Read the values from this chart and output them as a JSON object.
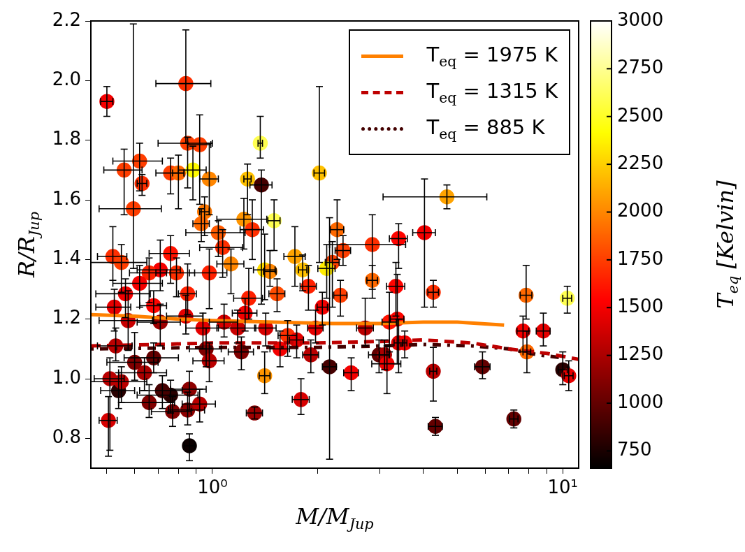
{
  "chart_data": {
    "type": "scatter",
    "xlabel": "M/M$_{Jup}$",
    "ylabel": "R/R$_{Jup}$",
    "clabel": "T$_{eq}$ [Kelvin]",
    "log": "x",
    "legend": "top right",
    "marker": "circle",
    "xlim": [
      0.45,
      11.1
    ],
    "xticks": [
      {
        "value": 0.5,
        "label": null
      },
      {
        "value": 0.6,
        "label": null
      },
      {
        "value": 0.7,
        "label": null
      },
      {
        "value": 0.8,
        "label": null
      },
      {
        "value": 0.9,
        "label": null
      },
      {
        "value": 1,
        "label": "10⁰"
      },
      {
        "value": 2,
        "label": null
      },
      {
        "value": 3,
        "label": null
      },
      {
        "value": 4,
        "label": null
      },
      {
        "value": 5,
        "label": null
      },
      {
        "value": 6,
        "label": null
      },
      {
        "value": 7,
        "label": null
      },
      {
        "value": 8,
        "label": null
      },
      {
        "value": 9,
        "label": null
      },
      {
        "value": 10,
        "label": "10¹"
      }
    ],
    "ylim": [
      0.7,
      2.2
    ],
    "yticks": [
      0.8,
      {
        "value": 1,
        "label": "1.0"
      },
      1.2,
      1.4,
      1.6,
      1.8,
      {
        "value": 2,
        "label": "2.0"
      },
      2.2
    ],
    "clim": [
      660,
      3000
    ],
    "cticks": [
      750,
      1000,
      1250,
      1500,
      1750,
      2000,
      2250,
      2500,
      2750,
      3000
    ],
    "series": [
      {
        "x": [
          0.5,
          0.84,
          0.56,
          0.62,
          0.63,
          0.595,
          0.76,
          0.8,
          0.88,
          0.85,
          0.92,
          0.98,
          1.26,
          1.38,
          1.37,
          1.5,
          2.02,
          1.23,
          1.3,
          0.95,
          0.93,
          1.04,
          4.67,
          4.03,
          2.27,
          2.86,
          3.4,
          2.36,
          2.2,
          1.72,
          1.81,
          2.12,
          1.41,
          1.46,
          1.13,
          1.07,
          0.76,
          0.52,
          0.55,
          0.71,
          0.66,
          0.79,
          0.62,
          0.98,
          3.34,
          4.27,
          2.86,
          2.32,
          1.88,
          1.53,
          1.27,
          2.06,
          7.86,
          10.3,
          0.565,
          0.85,
          0.68,
          0.525,
          0.575,
          0.71,
          0.94,
          1.18,
          1.42,
          1.64,
          1.97,
          2.73,
          3.2,
          3.37,
          3.4,
          2.99,
          3.1,
          3.54,
          3.15,
          4.27,
          5.9,
          7.7,
          8.8,
          7.9,
          10.0,
          10.4,
          4.33,
          7.25,
          2.49,
          2.16,
          1.79,
          1.32,
          1.41,
          0.86,
          0.505,
          0.54,
          0.55,
          0.64,
          0.66,
          0.76,
          0.72,
          0.85,
          0.92,
          0.77,
          0.86,
          0.6,
          0.68,
          0.84,
          1.08,
          1.24,
          0.96,
          0.98,
          1.21,
          1.56,
          1.91,
          1.74,
          0.53,
          0.51
        ],
        "values": [
          1.93,
          1.99,
          1.7,
          1.73,
          1.655,
          1.57,
          1.69,
          1.69,
          1.7,
          1.79,
          1.785,
          1.67,
          1.67,
          1.65,
          1.79,
          1.53,
          1.69,
          1.535,
          1.5,
          1.56,
          1.52,
          1.49,
          1.61,
          1.49,
          1.5,
          1.45,
          1.47,
          1.43,
          1.39,
          1.41,
          1.365,
          1.37,
          1.365,
          1.36,
          1.385,
          1.44,
          1.42,
          1.41,
          1.39,
          1.365,
          1.355,
          1.355,
          1.32,
          1.355,
          1.31,
          1.29,
          1.33,
          1.28,
          1.31,
          1.285,
          1.27,
          1.24,
          1.28,
          1.27,
          1.285,
          1.285,
          1.245,
          1.24,
          1.195,
          1.19,
          1.17,
          1.17,
          1.17,
          1.145,
          1.17,
          1.17,
          1.19,
          1.2,
          1.12,
          1.08,
          1.08,
          1.12,
          1.05,
          1.025,
          1.04,
          1.16,
          1.16,
          1.09,
          1.03,
          1.01,
          0.84,
          0.865,
          1.02,
          1.04,
          0.93,
          0.885,
          1.01,
          0.775,
          0.86,
          0.96,
          0.99,
          1.02,
          0.92,
          0.945,
          0.96,
          0.895,
          0.915,
          0.89,
          0.965,
          1.055,
          1.07,
          1.21,
          1.19,
          1.22,
          1.1,
          1.06,
          1.09,
          1.1,
          1.08,
          1.13,
          1.11,
          1.0
        ],
        "errors": [
          0.05,
          [
            1.79,
            2.17
          ],
          [
            1.55,
            1.77
          ],
          [
            1.63,
            1.79
          ],
          [
            1.615,
            1.685
          ],
          [
            1.37,
            2.19
          ],
          [
            1.62,
            1.74
          ],
          [
            1.57,
            1.75
          ],
          [
            1.6,
            1.78
          ],
          [
            1.64,
            1.81
          ],
          [
            1.585,
            1.885
          ],
          0.12,
          [
            1.55,
            1.72
          ],
          [
            1.25,
            1.7
          ],
          [
            1.74,
            1.88
          ],
          [
            1.43,
            1.6
          ],
          [
            1.39,
            1.98
          ],
          [
            1.435,
            1.605
          ],
          0.1,
          [
            1.48,
            1.61
          ],
          [
            1.46,
            1.57
          ],
          [
            1.41,
            1.53
          ],
          0.04,
          [
            1.24,
            1.67
          ],
          0.1,
          [
            1.3,
            1.55
          ],
          [
            1.37,
            1.52
          ],
          0.05,
          [
            1.24,
            1.46
          ],
          0.1,
          [
            1.295,
            1.415
          ],
          [
            1.27,
            1.45
          ],
          [
            1.265,
            1.485
          ],
          [
            1.31,
            1.43
          ],
          [
            1.285,
            1.435
          ],
          [
            1.34,
            1.5
          ],
          [
            1.32,
            1.48
          ],
          [
            1.33,
            1.51
          ],
          [
            1.29,
            1.45
          ],
          [
            1.295,
            1.465
          ],
          [
            1.255,
            1.405
          ],
          [
            1.275,
            1.405
          ],
          [
            1.24,
            1.38
          ],
          [
            1.235,
            1.435
          ],
          [
            1.21,
            1.39
          ],
          [
            1.24,
            1.33
          ],
          [
            1.27,
            1.38
          ],
          [
            1.21,
            1.33
          ],
          [
            1.23,
            1.38
          ],
          [
            1.225,
            1.335
          ],
          [
            1.2,
            1.37
          ],
          [
            1.18,
            1.29
          ],
          [
            1.2,
            1.38
          ],
          [
            1.22,
            1.31
          ],
          [
            1.205,
            1.335
          ],
          [
            1.215,
            1.385
          ],
          [
            1.185,
            1.295
          ],
          [
            1.16,
            1.3
          ],
          0.1,
          [
            1.11,
            1.25
          ],
          [
            1.1,
            1.22
          ],
          [
            1.12,
            1.23
          ],
          [
            1.11,
            1.22
          ],
          [
            1.075,
            1.195
          ],
          [
            1.12,
            1.23
          ],
          [
            1.11,
            1.27
          ],
          0.1,
          0.15,
          [
            1.02,
            1.2
          ],
          [
            1.02,
            1.13
          ],
          0.05,
          [
            1.07,
            1.16
          ],
          [
            0.95,
            1.11
          ],
          [
            0.925,
            1.105
          ],
          [
            1.0,
            1.09
          ],
          [
            1.09,
            1.21
          ],
          [
            1.11,
            1.22
          ],
          0.07,
          [
            0.98,
            1.09
          ],
          0.05,
          0.03,
          0.03,
          [
            0.96,
            1.07
          ],
          [
            0.73,
            1.54
          ],
          [
            0.88,
            1.0
          ],
          0.02,
          [
            0.95,
            1.09
          ],
          [
            0.725,
            0.815
          ],
          [
            0.74,
            0.94
          ],
          0.06,
          [
            0.92,
            1.04
          ],
          [
            0.96,
            1.07
          ],
          [
            0.87,
            0.98
          ],
          [
            0.885,
            0.995
          ],
          [
            0.9,
            1.01
          ],
          [
            0.845,
            0.955
          ],
          [
            0.855,
            0.965
          ],
          0.05,
          [
            0.895,
            1.025
          ],
          [
            0.995,
            1.155
          ],
          0.05,
          [
            1.15,
            1.28
          ],
          [
            1.14,
            1.25
          ],
          [
            1.16,
            1.27
          ],
          [
            1.04,
            1.17
          ],
          [
            0.99,
            1.12
          ],
          [
            1.03,
            1.14
          ],
          0.06,
          [
            1.02,
            1.13
          ],
          [
            1.07,
            1.18
          ],
          [
            1.06,
            1.17
          ],
          [
            0.76,
            1.07
          ]
        ],
        "xerrors": [
          0.02,
          0.15,
          0.07,
          0.1,
          0.02,
          0.12,
          0.07,
          0.03,
          0.08,
          0.15,
          0.07,
          0.06,
          0.03,
          0.1,
          0.02,
          0.06,
          0.07,
          0.2,
          0.1,
          0.03,
          0.05,
          0.2,
          [
            3.07,
            6.07
          ],
          0.3,
          0.1,
          0.7,
          0.2,
          0.12,
          0.1,
          0.12,
          0.05,
          0.12,
          0.1,
          0.06,
          0.1,
          0.15,
          0.1,
          0.05,
          0.1,
          0.1,
          0.08,
          0.1,
          0.1,
          0.12,
          0.2,
          0.15,
          0.1,
          0.1,
          0.1,
          0.08,
          0.12,
          0.07,
          0.3,
          0.3,
          0.1,
          0.05,
          0.06,
          0.06,
          0.1,
          0.1,
          0.1,
          0.15,
          0.1,
          0.1,
          0.1,
          0.15,
          0.15,
          0.15,
          0.1,
          0.2,
          0.1,
          0.05,
          0.3,
          0.1,
          0.3,
          0.3,
          0.4,
          0.2,
          0.3,
          0.3,
          0.2,
          0.2,
          0.12,
          0.1,
          0.1,
          0.07,
          0.05,
          0.03,
          0.03,
          0.06,
          0.1,
          0.1,
          0.12,
          0.15,
          0.1,
          0.1,
          0.1,
          0.1,
          0.1,
          0.1,
          0.12,
          0.1,
          0.1,
          0.1,
          0.1,
          0.1,
          0.1,
          0.1,
          0.1,
          0.08,
          0.06,
          0.05
        ],
        "colors": [
          "#f40000",
          "#ff2f00",
          "#ff3e00",
          "#ff3e00",
          "#ff2f00",
          "#ff3e00",
          "#ff3e00",
          "#ff6900",
          "#fffb00",
          "#ff3e00",
          "#ff3e00",
          "#ff8600",
          "#ffc100",
          "#460000",
          "#ffff51",
          "#ffff51",
          "#ffc100",
          "#ff9500",
          "#ff2f00",
          "#ff7800",
          "#ff6900",
          "#ff5b00",
          "#ffa300",
          "#f40000",
          "#ff6900",
          "#ff2f00",
          "#ff0400",
          "#ff3e00",
          "#ff3e00",
          "#ffa300",
          "#ffc100",
          "#ffec00",
          "#ffde00",
          "#ff8600",
          "#ff8600",
          "#ff2f00",
          "#ff1200",
          "#ff2f00",
          "#ff3e00",
          "#f40000",
          "#ff2100",
          "#ff2f00",
          "#f40000",
          "#ff2100",
          "#ff0400",
          "#ff2f00",
          "#ff6900",
          "#ff3e00",
          "#ff2100",
          "#ff4c00",
          "#ff2100",
          "#f40000",
          "#ff6900",
          "#ffff51",
          "#f40000",
          "#ff2100",
          "#ff0400",
          "#e60000",
          "#c90000",
          "#9d0000",
          "#e60000",
          "#c90000",
          "#d70000",
          "#ff2f00",
          "#e60000",
          "#ba0000",
          "#ff1200",
          "#ff0400",
          "#e60000",
          "#630000",
          "#ab0000",
          "#f40000",
          "#f40000",
          "#ba0000",
          "#630000",
          "#f40000",
          "#e60000",
          "#ff6900",
          "#290000",
          "#e60000",
          "#630000",
          "#630000",
          "#f40000",
          "#460000",
          "#d70000",
          "#9d0000",
          "#ff9500",
          "#0c0000",
          "#d70000",
          "#290000",
          "#ba0000",
          "#ab0000",
          "#800000",
          "#290000",
          "#460000",
          "#8e0000",
          "#ba0000",
          "#800000",
          "#8e0000",
          "#800000",
          "#630000",
          "#e60000",
          "#d70000",
          "#f40000",
          "#800000",
          "#ba0000",
          "#800000",
          "#f40000",
          "#ba0000",
          "#e60000",
          "#ba0000",
          "#ba0000"
        ],
        "cvalues": [
          1500,
          1700,
          1750,
          1750,
          1700,
          1750,
          1750,
          1900,
          2400,
          1750,
          1750,
          2000,
          2200,
          900,
          2600,
          2600,
          2200,
          2050,
          1700,
          1950,
          1900,
          1850,
          2100,
          1500,
          1900,
          1700,
          1550,
          1750,
          1750,
          2100,
          2200,
          2350,
          2300,
          2000,
          2000,
          1700,
          1600,
          1700,
          1750,
          1500,
          1650,
          1700,
          1500,
          1650,
          1550,
          1700,
          1900,
          1750,
          1650,
          1800,
          1650,
          1500,
          1900,
          2600,
          1500,
          1650,
          1550,
          1450,
          1350,
          1200,
          1450,
          1350,
          1400,
          1700,
          1450,
          1300,
          1600,
          1550,
          1450,
          1000,
          1250,
          1500,
          1500,
          1300,
          1000,
          1500,
          1450,
          1900,
          800,
          1450,
          1000,
          1000,
          1500,
          900,
          1400,
          1200,
          2050,
          700,
          1400,
          800,
          1300,
          1250,
          1100,
          800,
          900,
          1150,
          1300,
          1100,
          1150,
          1100,
          1000,
          1450,
          1400,
          1500,
          1100,
          1300,
          1100,
          1500,
          1300,
          1450,
          1300,
          1300
        ]
      },
      {
        "type": "line",
        "marker": "none",
        "name": "T$_{eq}$ = 1975 K",
        "color": "#ff8000",
        "line_style": "solid",
        "x": [
          0.45,
          0.6,
          0.8,
          1.0,
          1.5,
          2.2,
          3.0,
          4.0,
          5.0,
          6.8
        ],
        "values": [
          1.215,
          1.21,
          1.2,
          1.195,
          1.19,
          1.185,
          1.185,
          1.19,
          1.19,
          1.18
        ]
      },
      {
        "type": "line",
        "marker": "none",
        "name": "T$_{eq}$ = 1315 K",
        "color": "#be0000",
        "line_style": "dashed",
        "x": [
          0.45,
          0.7,
          1.0,
          2.0,
          3.0,
          4.0,
          5.5,
          7.0,
          9.0,
          11.1
        ],
        "values": [
          1.11,
          1.115,
          1.12,
          1.12,
          1.125,
          1.13,
          1.12,
          1.1,
          1.085,
          1.065
        ]
      },
      {
        "type": "line",
        "marker": "none",
        "name": "T$_{eq}$ = 885 K",
        "color": "#430000",
        "line_style": "dotted",
        "x": [
          0.45,
          1.0,
          2.0,
          3.0,
          4.0,
          5.5,
          7.0,
          8.5,
          10.0
        ],
        "values": [
          1.1,
          1.105,
          1.105,
          1.11,
          1.115,
          1.11,
          1.1,
          1.08,
          1.07
        ]
      }
    ]
  }
}
